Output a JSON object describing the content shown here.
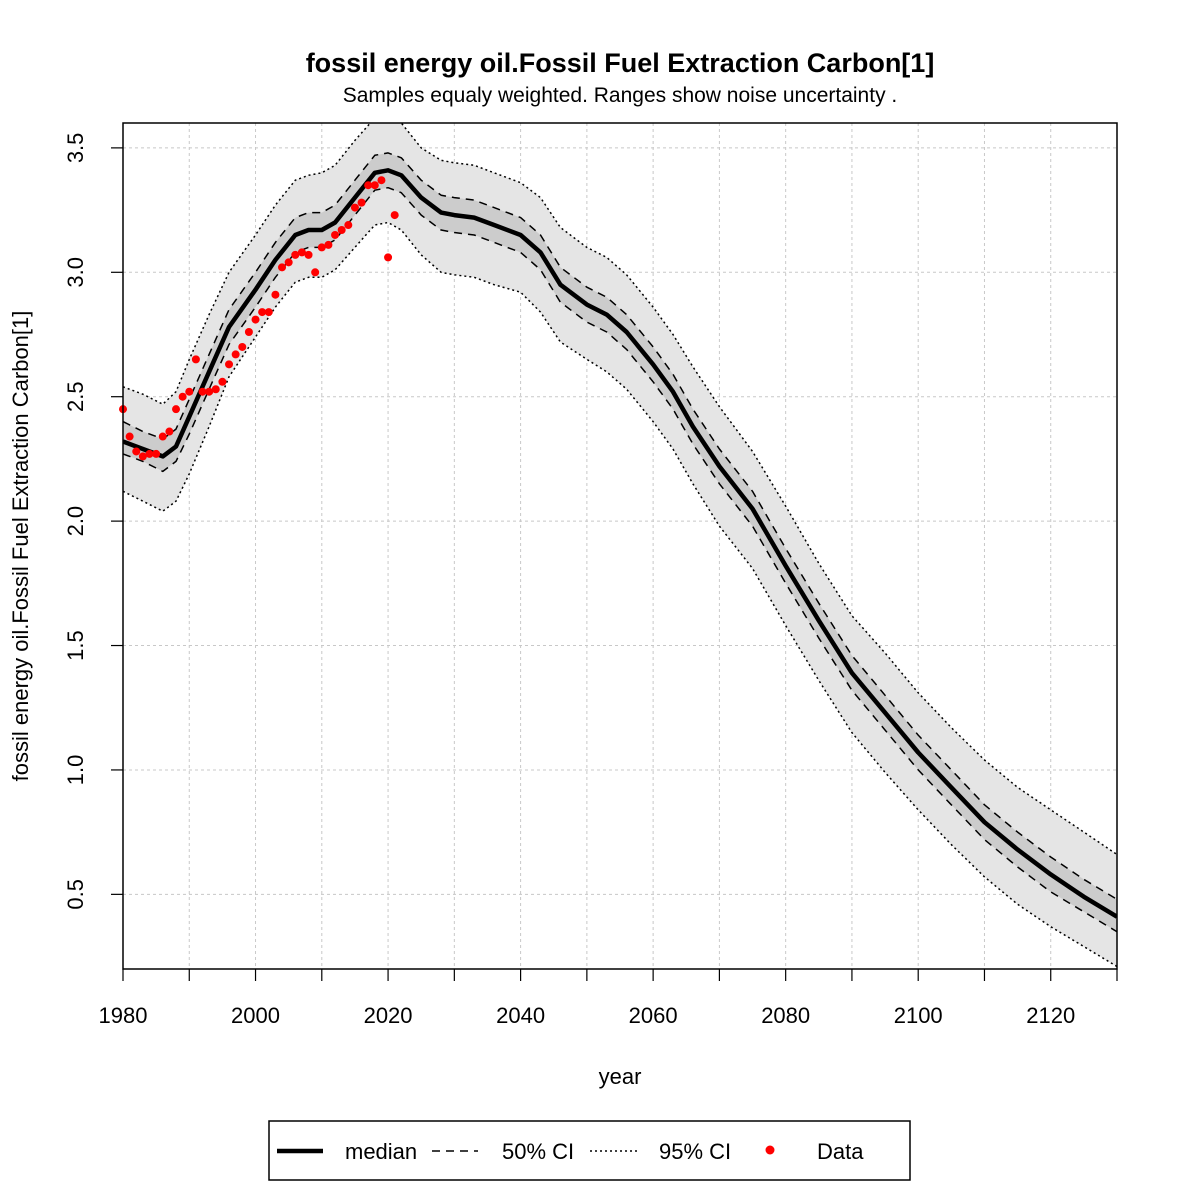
{
  "chart_data": {
    "type": "line",
    "title": "fossil energy oil.Fossil Fuel Extraction Carbon[1]",
    "subtitle": "Samples equaly weighted. Ranges show  noise uncertainty .",
    "xlabel": "year",
    "ylabel": "fossil energy oil.Fossil Fuel Extraction Carbon[1]",
    "xlim": [
      1980,
      2130
    ],
    "ylim": [
      0.2,
      3.6
    ],
    "xticks": [
      1980,
      2000,
      2020,
      2040,
      2060,
      2080,
      2100,
      2120
    ],
    "yticks": [
      0.5,
      1.0,
      1.5,
      2.0,
      2.5,
      3.0,
      3.5
    ],
    "ytick_labels": [
      "0.5",
      "1.0",
      "1.5",
      "2.0",
      "2.5",
      "3.0",
      "3.5"
    ],
    "grid": true,
    "legend_position": "bottom",
    "legend": [
      "median",
      "50% CI",
      "95% CI",
      "Data"
    ],
    "colors": {
      "median": "#000000",
      "band95": "#e5e5e5",
      "band50": "#cccccc",
      "data": "#ff0000",
      "grid": "#c8c8c8"
    },
    "series": [
      {
        "name": "median",
        "x": [
          1980,
          1983,
          1986,
          1988,
          1990,
          1993,
          1996,
          2000,
          2003,
          2006,
          2008,
          2010,
          2012,
          2015,
          2018,
          2020,
          2022,
          2025,
          2028,
          2030,
          2033,
          2036,
          2040,
          2043,
          2046,
          2050,
          2053,
          2056,
          2060,
          2063,
          2066,
          2070,
          2075,
          2080,
          2085,
          2090,
          2095,
          2100,
          2105,
          2110,
          2115,
          2120,
          2125,
          2130
        ],
        "y": [
          2.32,
          2.29,
          2.26,
          2.3,
          2.42,
          2.6,
          2.78,
          2.93,
          3.05,
          3.15,
          3.17,
          3.17,
          3.2,
          3.3,
          3.4,
          3.41,
          3.39,
          3.3,
          3.24,
          3.23,
          3.22,
          3.19,
          3.15,
          3.08,
          2.95,
          2.87,
          2.83,
          2.76,
          2.63,
          2.52,
          2.38,
          2.22,
          2.05,
          1.82,
          1.6,
          1.39,
          1.23,
          1.07,
          0.93,
          0.79,
          0.68,
          0.58,
          0.49,
          0.41
        ]
      },
      {
        "name": "50% CI lower",
        "x": [
          1980,
          1983,
          1986,
          1988,
          1990,
          1993,
          1996,
          2000,
          2003,
          2006,
          2008,
          2010,
          2012,
          2015,
          2018,
          2020,
          2022,
          2025,
          2028,
          2030,
          2033,
          2036,
          2040,
          2043,
          2046,
          2050,
          2053,
          2056,
          2060,
          2063,
          2066,
          2070,
          2075,
          2080,
          2085,
          2090,
          2095,
          2100,
          2105,
          2110,
          2115,
          2120,
          2125,
          2130
        ],
        "y": [
          2.27,
          2.24,
          2.2,
          2.24,
          2.35,
          2.53,
          2.71,
          2.86,
          2.98,
          3.08,
          3.1,
          3.1,
          3.13,
          3.23,
          3.33,
          3.34,
          3.32,
          3.23,
          3.17,
          3.16,
          3.15,
          3.12,
          3.08,
          3.01,
          2.88,
          2.8,
          2.76,
          2.69,
          2.56,
          2.45,
          2.31,
          2.15,
          1.98,
          1.75,
          1.53,
          1.32,
          1.16,
          1.0,
          0.86,
          0.72,
          0.61,
          0.51,
          0.43,
          0.35
        ]
      },
      {
        "name": "50% CI upper",
        "x": [
          1980,
          1983,
          1986,
          1988,
          1990,
          1993,
          1996,
          2000,
          2003,
          2006,
          2008,
          2010,
          2012,
          2015,
          2018,
          2020,
          2022,
          2025,
          2028,
          2030,
          2033,
          2036,
          2040,
          2043,
          2046,
          2050,
          2053,
          2056,
          2060,
          2063,
          2066,
          2070,
          2075,
          2080,
          2085,
          2090,
          2095,
          2100,
          2105,
          2110,
          2115,
          2120,
          2125,
          2130
        ],
        "y": [
          2.4,
          2.36,
          2.33,
          2.37,
          2.49,
          2.67,
          2.85,
          3.0,
          3.12,
          3.22,
          3.24,
          3.24,
          3.27,
          3.37,
          3.47,
          3.48,
          3.46,
          3.37,
          3.31,
          3.3,
          3.29,
          3.26,
          3.22,
          3.15,
          3.02,
          2.94,
          2.9,
          2.83,
          2.7,
          2.59,
          2.45,
          2.29,
          2.12,
          1.89,
          1.67,
          1.46,
          1.3,
          1.14,
          1.0,
          0.86,
          0.75,
          0.65,
          0.56,
          0.48
        ]
      },
      {
        "name": "95% CI lower",
        "x": [
          1980,
          1983,
          1986,
          1988,
          1990,
          1993,
          1996,
          2000,
          2003,
          2006,
          2008,
          2010,
          2012,
          2015,
          2018,
          2020,
          2022,
          2025,
          2028,
          2030,
          2033,
          2036,
          2040,
          2043,
          2046,
          2050,
          2053,
          2056,
          2060,
          2063,
          2066,
          2070,
          2075,
          2080,
          2085,
          2090,
          2095,
          2100,
          2105,
          2110,
          2115,
          2120,
          2125,
          2130
        ],
        "y": [
          2.12,
          2.08,
          2.04,
          2.08,
          2.19,
          2.38,
          2.58,
          2.74,
          2.86,
          2.96,
          2.98,
          2.98,
          3.01,
          3.1,
          3.19,
          3.2,
          3.17,
          3.07,
          3.0,
          2.99,
          2.98,
          2.95,
          2.92,
          2.84,
          2.72,
          2.65,
          2.6,
          2.53,
          2.4,
          2.29,
          2.15,
          1.98,
          1.81,
          1.58,
          1.36,
          1.15,
          0.99,
          0.84,
          0.7,
          0.57,
          0.46,
          0.37,
          0.29,
          0.21
        ]
      },
      {
        "name": "95% CI upper",
        "x": [
          1980,
          1983,
          1986,
          1988,
          1990,
          1993,
          1996,
          2000,
          2003,
          2006,
          2008,
          2010,
          2012,
          2015,
          2018,
          2020,
          2022,
          2025,
          2028,
          2030,
          2033,
          2036,
          2040,
          2043,
          2046,
          2050,
          2053,
          2056,
          2060,
          2063,
          2066,
          2070,
          2075,
          2080,
          2085,
          2090,
          2095,
          2100,
          2105,
          2110,
          2115,
          2120,
          2125,
          2130
        ],
        "y": [
          2.54,
          2.51,
          2.47,
          2.52,
          2.65,
          2.83,
          3.0,
          3.15,
          3.27,
          3.37,
          3.39,
          3.4,
          3.43,
          3.53,
          3.62,
          3.63,
          3.6,
          3.5,
          3.45,
          3.44,
          3.43,
          3.4,
          3.36,
          3.3,
          3.18,
          3.1,
          3.06,
          2.99,
          2.86,
          2.75,
          2.62,
          2.46,
          2.28,
          2.06,
          1.83,
          1.62,
          1.47,
          1.31,
          1.17,
          1.04,
          0.93,
          0.84,
          0.75,
          0.66
        ]
      },
      {
        "name": "Data",
        "x": [
          1980,
          1981,
          1982,
          1983,
          1984,
          1985,
          1986,
          1987,
          1988,
          1989,
          1990,
          1991,
          1992,
          1993,
          1994,
          1995,
          1996,
          1997,
          1998,
          1999,
          2000,
          2001,
          2002,
          2003,
          2004,
          2005,
          2006,
          2007,
          2008,
          2009,
          2010,
          2011,
          2012,
          2013,
          2014,
          2015,
          2016,
          2017,
          2018,
          2019,
          2020,
          2021
        ],
        "y": [
          2.45,
          2.34,
          2.28,
          2.26,
          2.27,
          2.27,
          2.34,
          2.36,
          2.45,
          2.5,
          2.52,
          2.65,
          2.52,
          2.52,
          2.53,
          2.56,
          2.63,
          2.67,
          2.7,
          2.76,
          2.81,
          2.84,
          2.84,
          2.91,
          3.02,
          3.04,
          3.07,
          3.08,
          3.07,
          3.0,
          3.1,
          3.11,
          3.15,
          3.17,
          3.19,
          3.26,
          3.28,
          3.35,
          3.35,
          3.37,
          3.06,
          3.23
        ]
      }
    ]
  }
}
